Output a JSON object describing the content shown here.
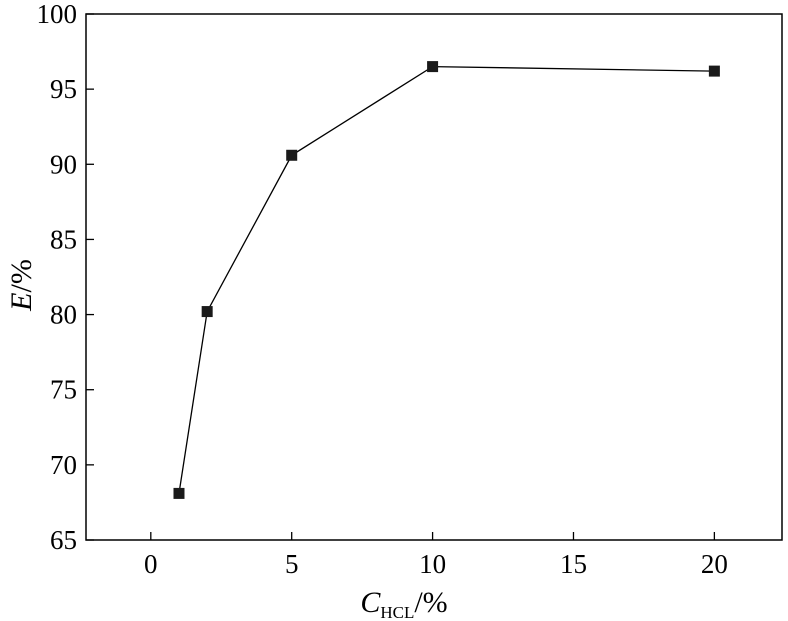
{
  "chart_data": {
    "type": "line",
    "title": "",
    "xlabel": {
      "main": "C",
      "sub": "HCL",
      "rest": "/%"
    },
    "ylabel": {
      "main": "E",
      "rest": "/%"
    },
    "xlim": [
      -2.3,
      22.4
    ],
    "ylim": [
      65,
      100
    ],
    "xticks": [
      0,
      5,
      10,
      15,
      20
    ],
    "yticks": [
      65,
      70,
      75,
      80,
      85,
      90,
      95,
      100
    ],
    "grid": false,
    "marker": "square",
    "series": [
      {
        "x": [
          1,
          2,
          5,
          10,
          20
        ],
        "y": [
          68.1,
          80.2,
          90.6,
          96.5,
          96.2
        ]
      }
    ]
  }
}
